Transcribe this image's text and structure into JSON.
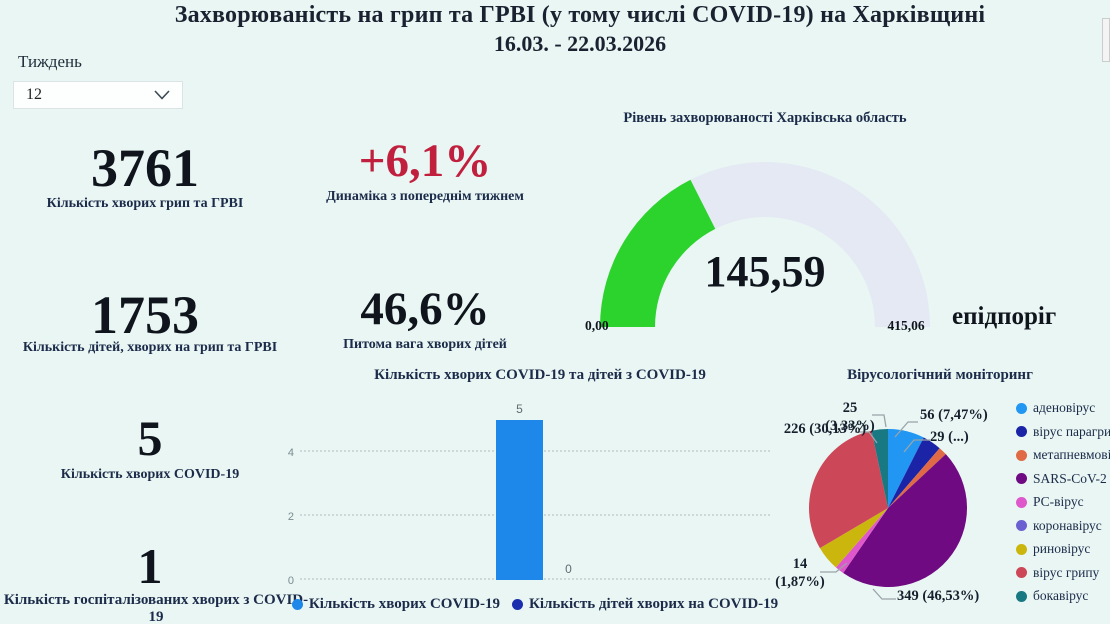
{
  "page_title": {
    "line1": "Захворюваність на грип та ГРВІ (у тому числі COVID-19) на Харківщині",
    "line2": "16.03. - 22.03.2026"
  },
  "week_selector": {
    "label": "Тиждень",
    "value": "12"
  },
  "kpis": {
    "flu_total": {
      "value": "3761",
      "label": "Кількість хворих грип та ГРВІ"
    },
    "dynamics": {
      "value": "+6,1%",
      "label": "Динаміка з попереднім тижнем",
      "color": "#c11f3e"
    },
    "children_flu": {
      "value": "1753",
      "label": "Кількість дітей, хворих на грип та ГРВІ"
    },
    "children_share": {
      "value": "46,6%",
      "label": "Питома вага хворих дітей"
    },
    "covid": {
      "value": "5",
      "label": "Кількість хворих COVID-19"
    },
    "covid_hospitalized": {
      "value": "1",
      "label": "Кількість госпіталізованих хворих з COVID-19"
    }
  },
  "chart_data": [
    {
      "type": "gauge",
      "title": "Рівень захворюваності Харківська область",
      "value": 145.59,
      "value_label": "145,59",
      "min": 0,
      "max": 415.06,
      "min_label": "0,00",
      "max_label": "415,06",
      "threshold_label": "епідпоріг",
      "fill_color": "#2dd32d",
      "track_color": "#e4e9f4"
    },
    {
      "type": "bar",
      "title": "Кількість хворих COVID-19 та дітей з COVID-19",
      "categories": [
        ""
      ],
      "series": [
        {
          "name": "Кількість хворих COVID-19",
          "values": [
            5
          ],
          "color": "#1e88ea"
        },
        {
          "name": "Кількість дітей хворих на COVID-19",
          "values": [
            0
          ],
          "color": "#1b2fae"
        }
      ],
      "ylim": [
        0,
        5
      ],
      "yticks": [
        0,
        2,
        4
      ],
      "grid": "horizontal dotted",
      "legend_position": "bottom"
    },
    {
      "type": "pie",
      "title": "Вірусологічний моніторинг",
      "total_estimated": 750,
      "slices": [
        {
          "label": "аденовірус",
          "value": 56,
          "color": "#2196f3",
          "callout": "56 (7,47%)"
        },
        {
          "label": "вірус парагрипу",
          "value": 29,
          "color": "#1b23a6",
          "callout": "29 (...)"
        },
        {
          "label": "метапневмовірус",
          "value": 13,
          "color": "#df6a45",
          "callout": ""
        },
        {
          "label": "SARS-CoV-2",
          "value": 349,
          "color": "#6f0a82",
          "callout": "349 (46,53%)"
        },
        {
          "label": "РС-вірус",
          "value": 14,
          "color": "#de58cb",
          "callout": "14 (1,87%)"
        },
        {
          "label": "коронавірус",
          "value": 0,
          "color": "#6c5fd2",
          "callout": ""
        },
        {
          "label": "риновірус",
          "value": 38,
          "color": "#cbb60d",
          "callout": ""
        },
        {
          "label": "вірус грипу",
          "value": 226,
          "color": "#cc4758",
          "callout": "226 (30,13%)"
        },
        {
          "label": "бокавірус",
          "value": 25,
          "color": "#187983",
          "callout": "25 (3,33%)"
        }
      ],
      "legend_position": "right"
    }
  ],
  "colors": {
    "background": "#e9f6f3",
    "accent_red": "#c11f3e",
    "text_dark": "#10151d",
    "text_navy": "#1c2b4a"
  }
}
